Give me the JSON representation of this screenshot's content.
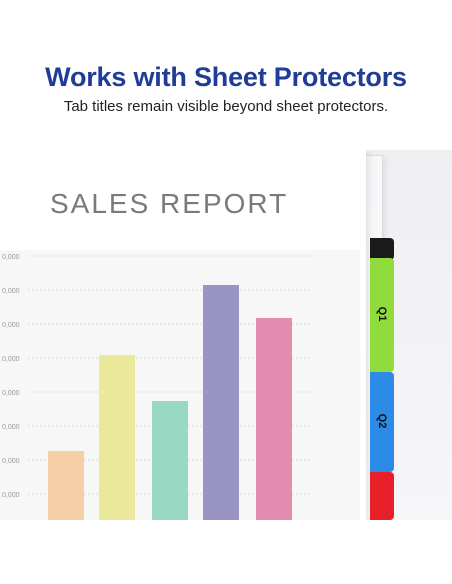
{
  "header": {
    "title": "Works with Sheet Protectors",
    "subtitle": "Tab titles remain visible beyond sheet protectors."
  },
  "document": {
    "title": "SALES REPORT"
  },
  "tabs": [
    {
      "label": "",
      "color": "#1a1a1a"
    },
    {
      "label": "Q1",
      "color": "#8fdc3c"
    },
    {
      "label": "Q2",
      "color": "#2b8be6"
    },
    {
      "label": "",
      "color": "#e8202a"
    }
  ],
  "chart_data": {
    "type": "bar",
    "title": "",
    "categories": [
      "",
      "",
      "",
      "",
      ""
    ],
    "values": [
      20000,
      48000,
      34000,
      68000,
      59000
    ],
    "colors": [
      "#f5cfa6",
      "#eae89a",
      "#99d8c2",
      "#9994c4",
      "#e48cb0"
    ],
    "ytick_labels": [
      "0,000",
      "0,000",
      "0,000",
      "0,000",
      "0,000",
      "0,000",
      "0,000",
      "0,000"
    ],
    "ytick_values": [
      80000,
      70000,
      60000,
      50000,
      40000,
      30000,
      20000,
      10000
    ],
    "ylim": [
      0,
      80000
    ],
    "grid": true
  }
}
